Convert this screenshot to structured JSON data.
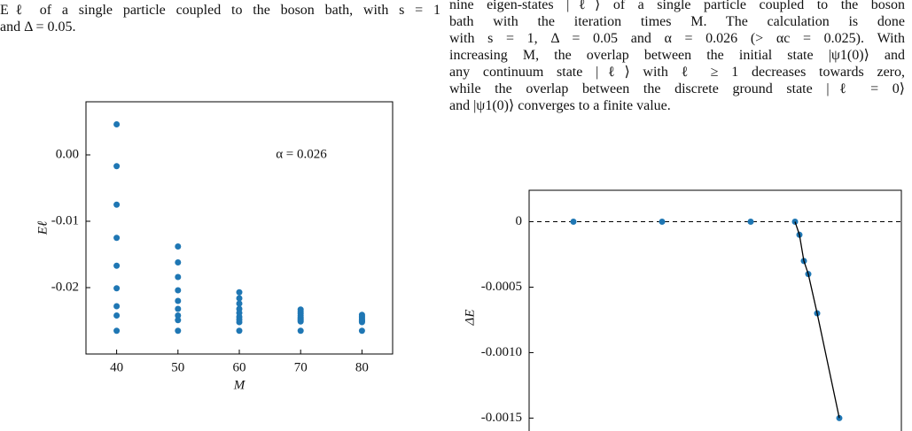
{
  "left_text": {
    "lines": [
      "Eℓ of a single particle coupled to the boson bath, with s = 1",
      "and Δ = 0.05."
    ]
  },
  "right_text": {
    "lines": [
      "nine eigen-states |ℓ⟩ of a single particle coupled to the boson",
      "bath with the iteration times M.  The calculation is done",
      "with s = 1, Δ = 0.05 and α = 0.026 (> αc = 0.025). With",
      "increasing M, the overlap between the initial state |ψ1(0)⟩ and",
      "any continuum state |ℓ⟩ with ℓ ≥ 1 decreases towards zero,",
      "while the overlap between the discrete ground state |ℓ = 0⟩",
      "and |ψ1(0)⟩ converges to a finite value."
    ]
  },
  "chart_data": [
    {
      "type": "scatter",
      "xlabel": "M",
      "ylabel": "Eℓ",
      "annotation": "α = 0.026",
      "xlim": [
        35,
        85
      ],
      "xticks": [
        40,
        50,
        60,
        70,
        80
      ],
      "ylim": [
        -0.03,
        0.008
      ],
      "yticks": [
        {
          "value": 0,
          "label": "0.00"
        },
        -0.01,
        -0.02
      ],
      "series": [
        {
          "color": "#1f77b4",
          "mode": "markers",
          "x": [
            40,
            40,
            40,
            40,
            40,
            40,
            40,
            40,
            40,
            50,
            50,
            50,
            50,
            50,
            50,
            50,
            50,
            50,
            60,
            60,
            60,
            60,
            60,
            60,
            60,
            60,
            60,
            70,
            70,
            70,
            70,
            70,
            70,
            70,
            70,
            70,
            80,
            80,
            80,
            80,
            80,
            80,
            80,
            80,
            80
          ],
          "values": [
            0.0046,
            -0.0017,
            -0.0075,
            -0.0125,
            -0.0167,
            -0.0201,
            -0.0228,
            -0.0242,
            -0.0265,
            -0.0138,
            -0.0162,
            -0.0184,
            -0.0204,
            -0.022,
            -0.0232,
            -0.0242,
            -0.0249,
            -0.0265,
            -0.0207,
            -0.0216,
            -0.0224,
            -0.0232,
            -0.0238,
            -0.0244,
            -0.0248,
            -0.0252,
            -0.0265,
            -0.0233,
            -0.0236,
            -0.0239,
            -0.0242,
            -0.0245,
            -0.0247,
            -0.0249,
            -0.0251,
            -0.0265,
            -0.0241,
            -0.0243,
            -0.0245,
            -0.0247,
            -0.0249,
            -0.025,
            -0.0251,
            -0.0252,
            -0.0265
          ]
        }
      ]
    },
    {
      "type": "scatter",
      "ylabel": "ΔE",
      "xlim": [
        0.019,
        0.0274
      ],
      "ylim": [
        -0.0017,
        0.00024
      ],
      "yticks": [
        0,
        -0.0005,
        {
          "value": -0.001,
          "label": "-0.0010"
        },
        -0.0015
      ],
      "hline": 0,
      "series": [
        {
          "color": "#1f77b4",
          "mode": "markers",
          "x": [
            0.02,
            0.022,
            0.024,
            0.025,
            0.0251,
            0.0252,
            0.0253,
            0.0255,
            0.026
          ],
          "values": [
            0,
            0,
            0,
            0,
            -0.0001,
            -0.0003,
            -0.0004,
            -0.0007,
            -0.0015
          ]
        },
        {
          "color": "#000000",
          "mode": "line",
          "x": [
            0.025,
            0.0251,
            0.0252,
            0.0253,
            0.0255,
            0.026
          ],
          "values": [
            0,
            -0.0001,
            -0.0003,
            -0.0004,
            -0.0007,
            -0.0015
          ]
        }
      ]
    }
  ]
}
